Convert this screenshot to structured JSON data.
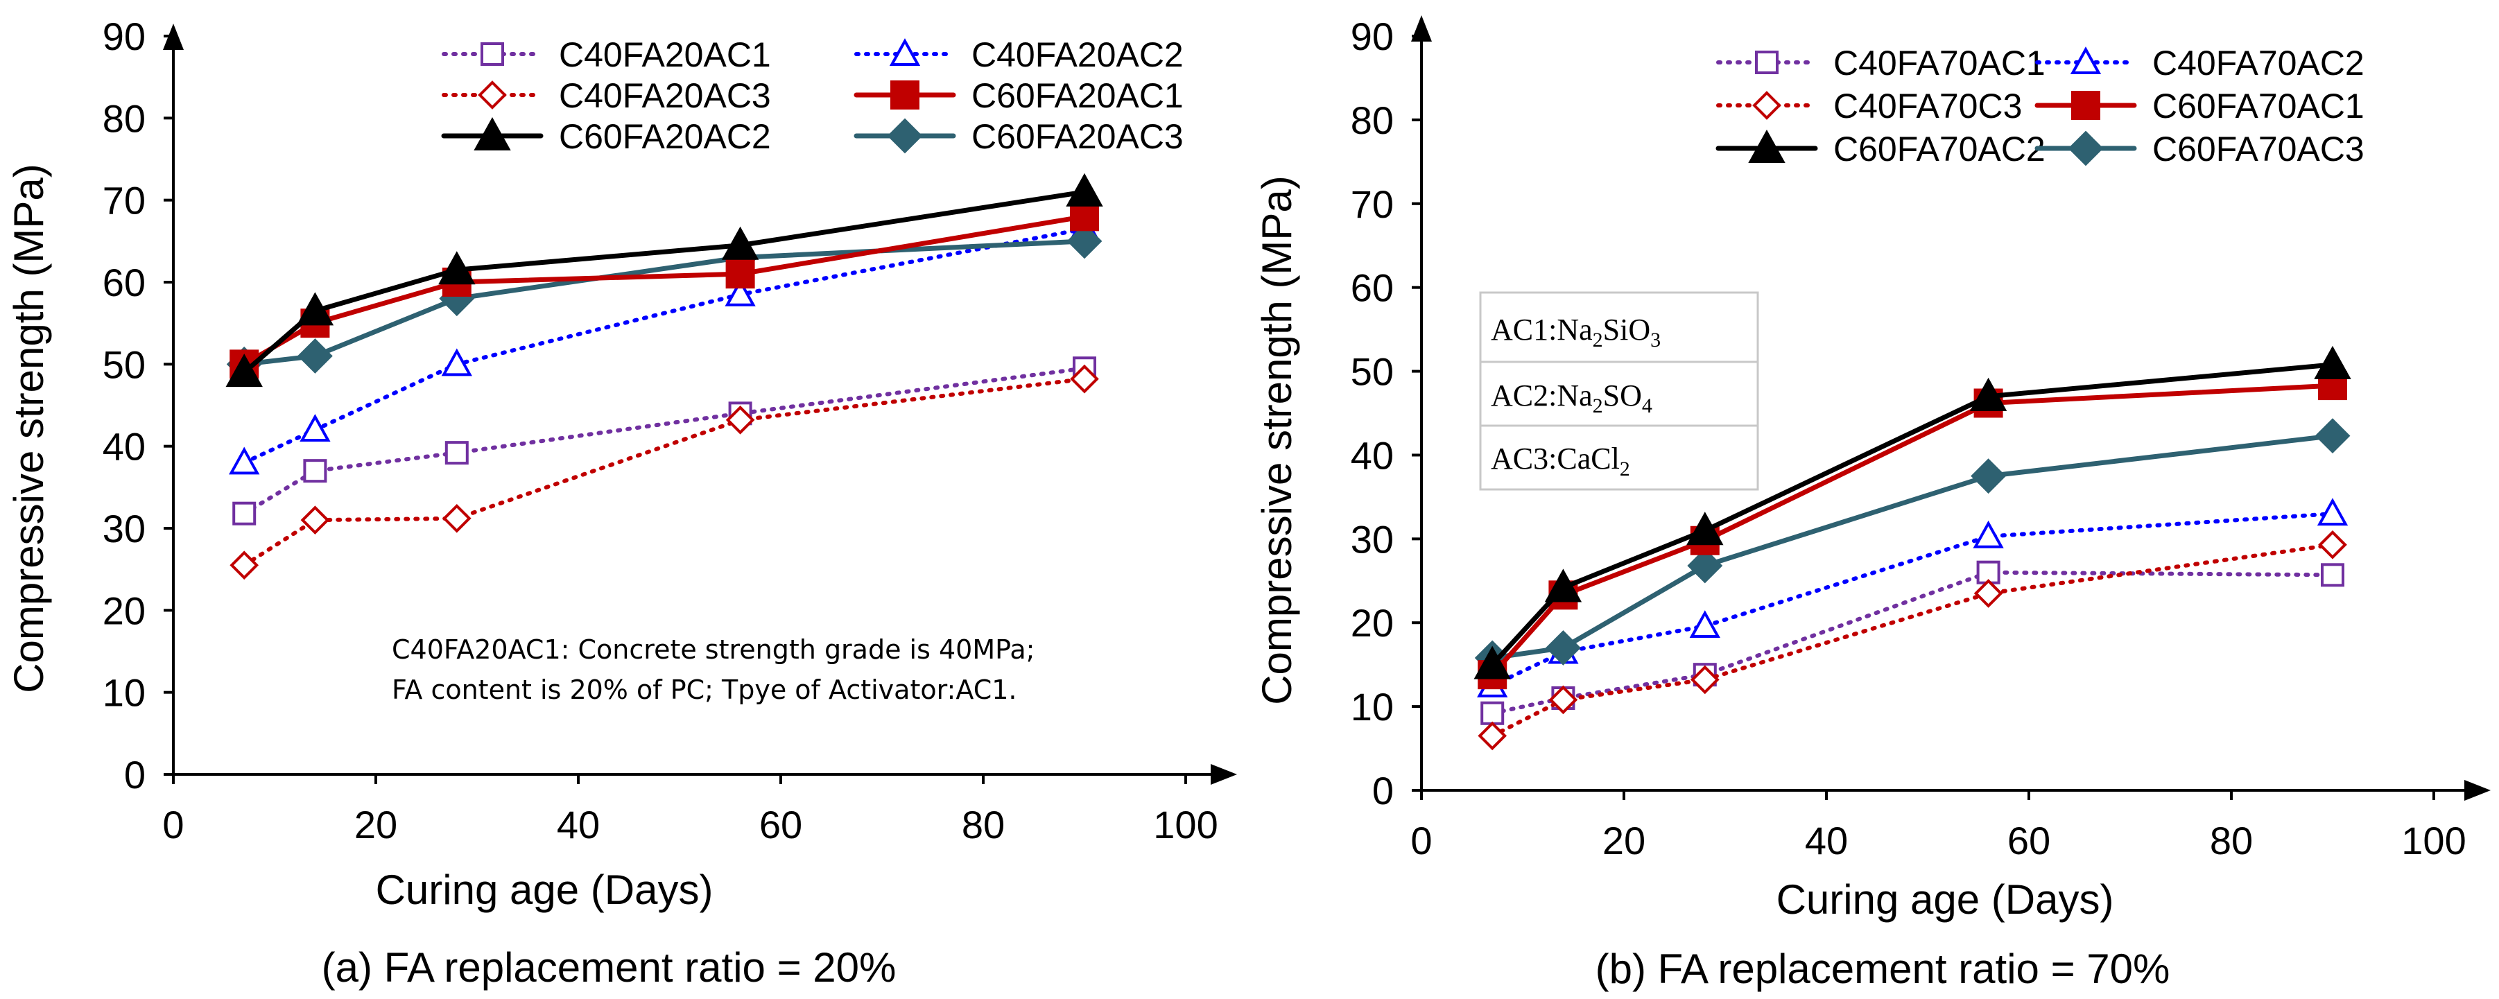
{
  "chart_data": [
    {
      "id": "a",
      "type": "line",
      "caption": "(a) FA replacement ratio = 20%",
      "xlabel": "Curing age (Days)",
      "ylabel": "Compressive strength (MPa)",
      "xlim": [
        0,
        100
      ],
      "ylim": [
        0,
        90
      ],
      "xticks": [
        0,
        20,
        40,
        60,
        80,
        100
      ],
      "yticks": [
        0,
        10,
        20,
        30,
        40,
        50,
        60,
        70,
        80,
        90
      ],
      "grid": false,
      "legend_position": "top-right",
      "note": [
        "C40FA20AC1: Concrete strength grade is 40MPa;",
        "FA content is 20% of PC; Tpye of Activator:AC1."
      ],
      "x": [
        7,
        14,
        28,
        56,
        90
      ],
      "series": [
        {
          "name": "C40FA20AC1",
          "color": "#7030a0",
          "dash": "dot",
          "marker": "open-square",
          "values": [
            31.8,
            37,
            39.2,
            44,
            49.5
          ]
        },
        {
          "name": "C40FA20AC2",
          "color": "#0000ff",
          "dash": "dot",
          "marker": "open-triangle",
          "values": [
            38,
            42,
            50,
            58.5,
            66.5
          ]
        },
        {
          "name": "C40FA20AC3",
          "color": "#c00000",
          "dash": "dot",
          "marker": "open-diamond",
          "values": [
            25.5,
            31,
            31.2,
            43.2,
            48.2
          ]
        },
        {
          "name": "C60FA20AC1",
          "color": "#c00000",
          "dash": "solid",
          "marker": "filled-square",
          "values": [
            50,
            55,
            60,
            61,
            68
          ]
        },
        {
          "name": "C60FA20AC2",
          "color": "#000000",
          "dash": "solid",
          "marker": "filled-triangle",
          "values": [
            49,
            56.5,
            61.5,
            64.5,
            71
          ]
        },
        {
          "name": "C60FA20AC3",
          "color": "#2e6171",
          "dash": "solid",
          "marker": "filled-diamond",
          "values": [
            50,
            51,
            58,
            63,
            65
          ]
        }
      ]
    },
    {
      "id": "b",
      "type": "line",
      "caption": "(b) FA replacement ratio = 70%",
      "xlabel": "Curing age (Days)",
      "ylabel": "Compressive strength (MPa)",
      "xlim": [
        0,
        100
      ],
      "ylim": [
        0,
        90
      ],
      "xticks": [
        0,
        20,
        40,
        60,
        80,
        100
      ],
      "yticks": [
        0,
        10,
        20,
        30,
        40,
        50,
        60,
        70,
        80,
        90
      ],
      "grid": false,
      "legend_position": "top-right",
      "activator_box": [
        {
          "prefix": "AC1:Na",
          "sub1": "2",
          "mid": "SiO",
          "sub2": "3"
        },
        {
          "prefix": "AC2:Na",
          "sub1": "2",
          "mid": "SO",
          "sub2": "4"
        },
        {
          "prefix": "AC3:CaCl",
          "sub1": "2",
          "mid": "",
          "sub2": ""
        }
      ],
      "x": [
        7,
        14,
        28,
        56,
        90
      ],
      "series": [
        {
          "name": "C40FA70AC1",
          "color": "#7030a0",
          "dash": "dot",
          "marker": "open-square",
          "values": [
            9.2,
            11,
            13.8,
            26,
            25.7
          ]
        },
        {
          "name": "C40FA70AC2",
          "color": "#0000ff",
          "dash": "dot",
          "marker": "open-triangle",
          "values": [
            12.5,
            16.5,
            19.6,
            30.3,
            33
          ]
        },
        {
          "name": "C40FA70C3",
          "color": "#c00000",
          "dash": "dot",
          "marker": "open-diamond",
          "values": [
            6.5,
            10.8,
            13.2,
            23.5,
            29.3
          ]
        },
        {
          "name": "C60FA70AC1",
          "color": "#c00000",
          "dash": "solid",
          "marker": "filled-square",
          "values": [
            13.8,
            23.3,
            29.8,
            46.2,
            48.3
          ]
        },
        {
          "name": "C60FA70AC2",
          "color": "#000000",
          "dash": "solid",
          "marker": "filled-triangle",
          "values": [
            15,
            24.2,
            31,
            47,
            50.8
          ]
        },
        {
          "name": "C60FA70AC3",
          "color": "#2e6171",
          "dash": "solid",
          "marker": "filled-diamond",
          "values": [
            15.8,
            17,
            26.8,
            37.5,
            42.3
          ]
        }
      ]
    }
  ]
}
